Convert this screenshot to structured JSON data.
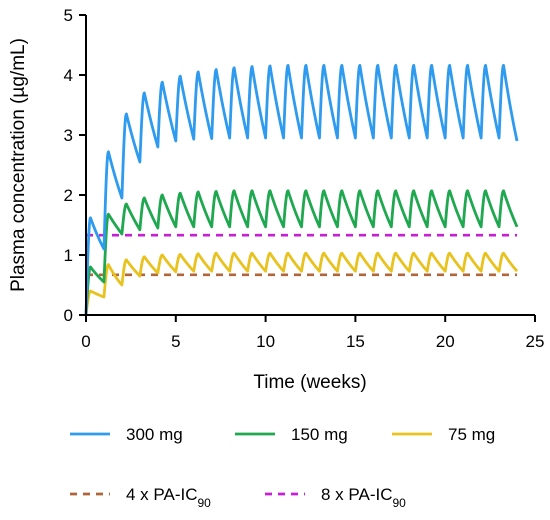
{
  "chart_data": {
    "type": "line",
    "title": "",
    "xlabel": "Time (weeks)",
    "ylabel": "Plasma concentration (µg/mL)",
    "xlim": [
      0,
      25
    ],
    "ylim": [
      0,
      5
    ],
    "xticks": [
      0,
      5,
      10,
      15,
      20,
      25
    ],
    "yticks": [
      0,
      1,
      2,
      3,
      4,
      5
    ],
    "grid": false,
    "legend_position": "bottom",
    "dosing_interval_weeks": 1,
    "x_end": 24,
    "series": [
      {
        "name": "300 mg",
        "color": "#2E9BEF",
        "style": "solid",
        "peaks": [
          1.62,
          2.72,
          3.35,
          3.7,
          3.88,
          3.98,
          4.05,
          4.09,
          4.12,
          4.14,
          4.15,
          4.16,
          4.16,
          4.16,
          4.16,
          4.16,
          4.16,
          4.16,
          4.16,
          4.16,
          4.16,
          4.16,
          4.16,
          4.16
        ],
        "troughs": [
          1.1,
          1.95,
          2.55,
          2.8,
          2.9,
          2.93,
          2.94,
          2.95,
          2.95,
          2.95,
          2.95,
          2.95,
          2.95,
          2.95,
          2.95,
          2.95,
          2.95,
          2.95,
          2.95,
          2.95,
          2.95,
          2.95,
          2.95,
          2.9
        ]
      },
      {
        "name": "150 mg",
        "color": "#1FA84F",
        "style": "solid",
        "peaks": [
          0.8,
          1.68,
          1.85,
          1.95,
          2.0,
          2.03,
          2.05,
          2.06,
          2.07,
          2.07,
          2.07,
          2.07,
          2.07,
          2.07,
          2.07,
          2.07,
          2.07,
          2.07,
          2.07,
          2.07,
          2.07,
          2.07,
          2.07,
          2.07
        ],
        "troughs": [
          0.55,
          1.35,
          1.42,
          1.45,
          1.47,
          1.47,
          1.47,
          1.47,
          1.47,
          1.47,
          1.47,
          1.47,
          1.47,
          1.47,
          1.47,
          1.47,
          1.47,
          1.47,
          1.47,
          1.47,
          1.47,
          1.47,
          1.47,
          1.47
        ]
      },
      {
        "name": "75 mg",
        "color": "#E8C21E",
        "style": "solid",
        "peaks": [
          0.4,
          0.84,
          0.92,
          0.97,
          1.0,
          1.01,
          1.02,
          1.03,
          1.03,
          1.03,
          1.03,
          1.03,
          1.03,
          1.03,
          1.03,
          1.03,
          1.03,
          1.03,
          1.03,
          1.03,
          1.03,
          1.03,
          1.03,
          1.03
        ],
        "troughs": [
          0.3,
          0.5,
          0.65,
          0.7,
          0.72,
          0.73,
          0.73,
          0.73,
          0.73,
          0.73,
          0.73,
          0.73,
          0.73,
          0.73,
          0.73,
          0.73,
          0.73,
          0.73,
          0.73,
          0.73,
          0.73,
          0.73,
          0.73,
          0.73
        ]
      },
      {
        "name": "4 x PA-IC",
        "subscript": "90",
        "color": "#B0663A",
        "style": "dashed",
        "value": 0.67
      },
      {
        "name": "8 x PA-IC",
        "subscript": "90",
        "color": "#C81ED8",
        "style": "dashed",
        "value": 1.33
      }
    ]
  }
}
